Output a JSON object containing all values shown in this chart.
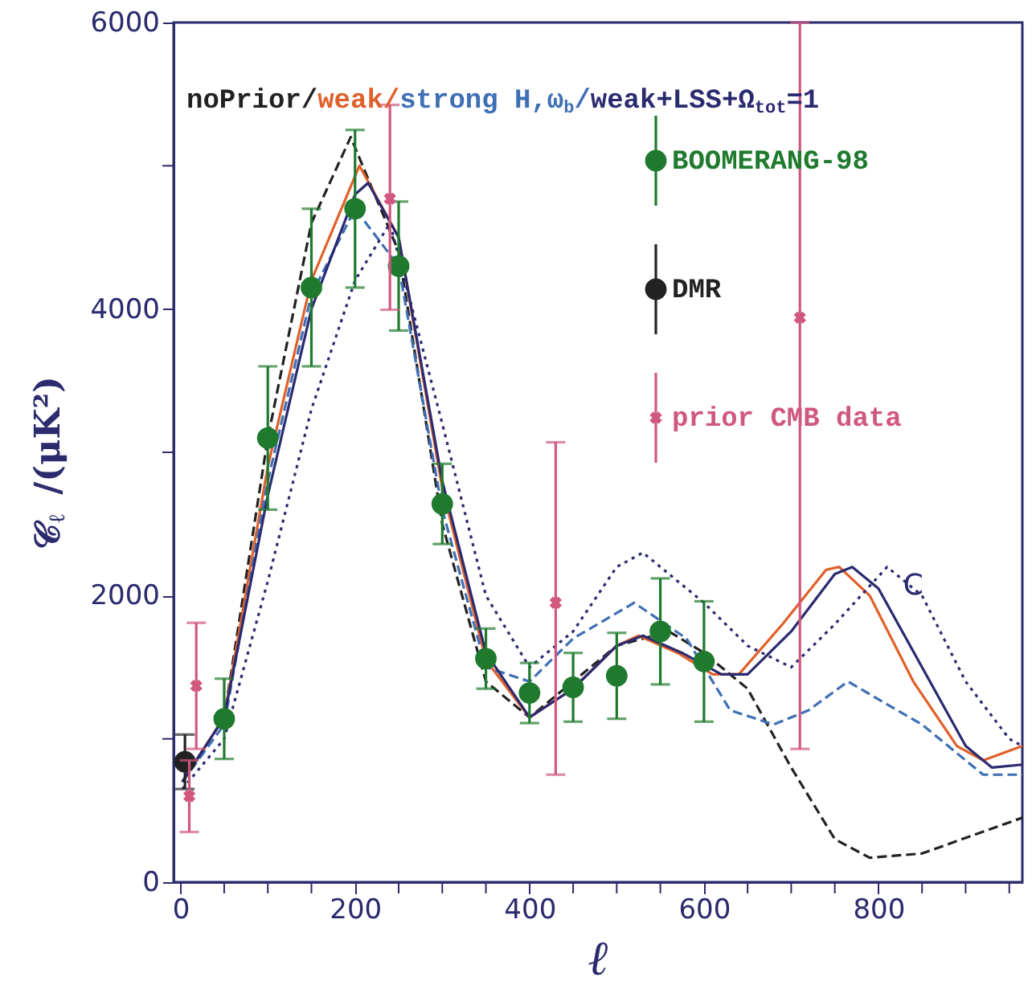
{
  "chart_data": {
    "type": "line",
    "xlabel": "ℓ",
    "ylabel": "𝒞$_{ℓ}$ /(μK²)",
    "xlim": [
      -8,
      965
    ],
    "ylim": [
      0,
      6000
    ],
    "xticks": [
      0,
      {
        "value": 50,
        "label": null
      },
      {
        "value": 100,
        "label": null
      },
      {
        "value": 150,
        "label": null
      },
      200,
      {
        "value": 250,
        "label": null
      },
      {
        "value": 300,
        "label": null
      },
      {
        "value": 350,
        "label": null
      },
      400,
      {
        "value": 450,
        "label": null
      },
      {
        "value": 500,
        "label": null
      },
      {
        "value": 550,
        "label": null
      },
      600,
      {
        "value": 650,
        "label": null
      },
      {
        "value": 700,
        "label": null
      },
      {
        "value": 750,
        "label": null
      },
      800,
      {
        "value": 850,
        "label": null
      },
      {
        "value": 900,
        "label": null
      },
      {
        "value": 950,
        "label": null
      }
    ],
    "yticks": [
      0,
      {
        "value": 1000,
        "label": null
      },
      2000,
      {
        "value": 3000,
        "label": null
      },
      4000,
      {
        "value": 5000,
        "label": null
      },
      6000
    ],
    "grid": false,
    "legend": "top right",
    "series": [
      {
        "name": "noPrior/",
        "color": "#222222",
        "line_style": "dashed",
        "x": [
          2,
          50,
          100,
          150,
          195,
          250,
          300,
          350,
          400,
          450,
          500,
          560,
          600,
          650,
          700,
          750,
          790,
          850,
          965
        ],
        "values": [
          700,
          1150,
          3100,
          4600,
          5200,
          4400,
          2500,
          1400,
          1150,
          1400,
          1650,
          1750,
          1600,
          1350,
          800,
          300,
          170,
          200,
          450
        ]
      },
      {
        "name": "weak/",
        "color": "#e0602a",
        "line_style": "solid",
        "x": [
          2,
          50,
          100,
          150,
          205,
          250,
          300,
          350,
          400,
          450,
          500,
          525,
          570,
          610,
          640,
          690,
          740,
          755,
          790,
          840,
          890,
          920,
          965
        ],
        "values": [
          700,
          1150,
          2900,
          4200,
          5000,
          4500,
          2750,
          1550,
          1150,
          1350,
          1650,
          1720,
          1600,
          1450,
          1450,
          1800,
          2180,
          2200,
          2000,
          1400,
          950,
          850,
          950
        ]
      },
      {
        "name": "strong H,ω$_{b}$/",
        "color": "#3f6fb5",
        "line_style": "dashed",
        "x": [
          2,
          50,
          100,
          150,
          200,
          250,
          300,
          350,
          400,
          450,
          520,
          580,
          630,
          680,
          720,
          765,
          850,
          920,
          965
        ],
        "values": [
          700,
          1100,
          2800,
          4100,
          4700,
          4300,
          2600,
          1500,
          1400,
          1700,
          1950,
          1700,
          1200,
          1100,
          1200,
          1400,
          1100,
          750,
          750
        ]
      },
      {
        "name": "weak+LSS+Ω$_{tot}$=1",
        "color": "#2a2a70",
        "line_style": "solid",
        "x": [
          2,
          50,
          100,
          150,
          200,
          215,
          250,
          300,
          350,
          400,
          450,
          500,
          530,
          575,
          620,
          650,
          700,
          750,
          770,
          800,
          850,
          900,
          930,
          965
        ],
        "values": [
          700,
          1150,
          2700,
          4000,
          4800,
          4880,
          4500,
          2800,
          1600,
          1150,
          1350,
          1650,
          1720,
          1600,
          1450,
          1450,
          1750,
          2150,
          2200,
          2050,
          1500,
          950,
          800,
          820
        ]
      },
      {
        "name": "C",
        "color": "#2a2a70",
        "line_style": "dotted",
        "x": [
          2,
          50,
          100,
          150,
          200,
          240,
          300,
          350,
          400,
          450,
          500,
          530,
          600,
          650,
          700,
          750,
          810,
          850,
          900,
          950,
          965
        ],
        "values": [
          650,
          1000,
          2100,
          3300,
          4200,
          4600,
          3200,
          2000,
          1500,
          1750,
          2200,
          2300,
          1950,
          1650,
          1500,
          1800,
          2200,
          2000,
          1400,
          1000,
          950
        ]
      },
      {
        "name": "BOOMERANG-98",
        "type": "scatter",
        "marker": "circle",
        "color": "#1f7a2e",
        "x": [
          50,
          100,
          150,
          200,
          250,
          300,
          350,
          400,
          450,
          500,
          550,
          600
        ],
        "values": [
          1140,
          3100,
          4150,
          4700,
          4300,
          2640,
          1560,
          1320,
          1360,
          1440,
          1750,
          1540
        ],
        "errors": [
          280,
          500,
          550,
          550,
          450,
          280,
          210,
          210,
          240,
          300,
          370,
          420
        ]
      },
      {
        "name": "DMR",
        "type": "scatter",
        "marker": "circle",
        "color": "#222222",
        "x": [
          5
        ],
        "values": [
          840
        ],
        "errors": [
          190
        ]
      },
      {
        "name": "prior CMB data",
        "type": "scatter",
        "marker": "cross",
        "color": "#d0587e",
        "x": [
          10,
          18,
          240,
          430,
          710
        ],
        "values": [
          600,
          1370,
          4770,
          1950,
          3940
        ],
        "errors": [
          250,
          440,
          [
            3995,
            5425
          ],
          [
            750,
            3070
          ],
          [
            930,
            6000
          ]
        ]
      }
    ]
  }
}
